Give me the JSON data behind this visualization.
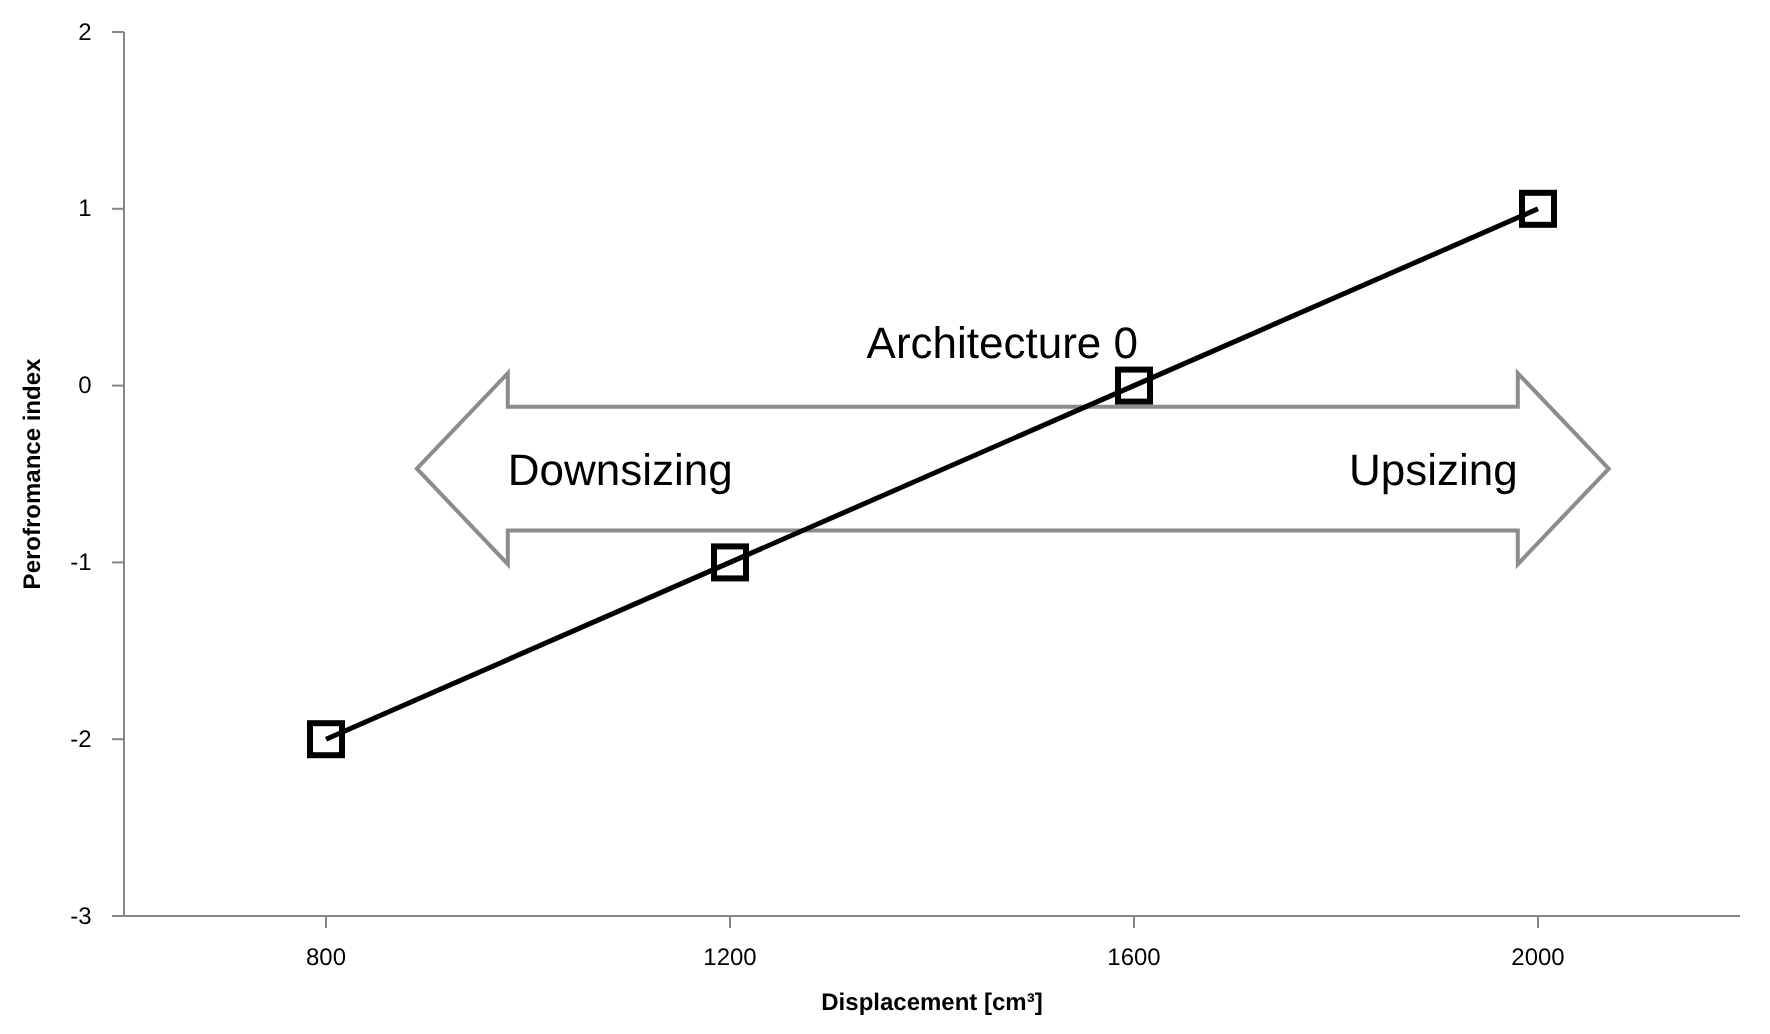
{
  "chart_data": {
    "type": "line",
    "xlabel": "Displacement [cm³]",
    "ylabel": "Perofromance index",
    "x": [
      800,
      1200,
      1600,
      2000
    ],
    "series": [
      {
        "color": "#000000",
        "values": [
          -2,
          -1,
          0,
          1
        ]
      }
    ],
    "xlim": [
      600,
      2200
    ],
    "xticks": [
      800,
      1200,
      1600,
      2000
    ],
    "ylim": [
      -3,
      2
    ],
    "yticks": [
      -3,
      -2,
      -1,
      0,
      1,
      2
    ],
    "grid": false,
    "marker": "square",
    "line_style": "solid",
    "annotations": [
      "Architecture 0",
      "Downsizing",
      "Upsizing"
    ]
  }
}
